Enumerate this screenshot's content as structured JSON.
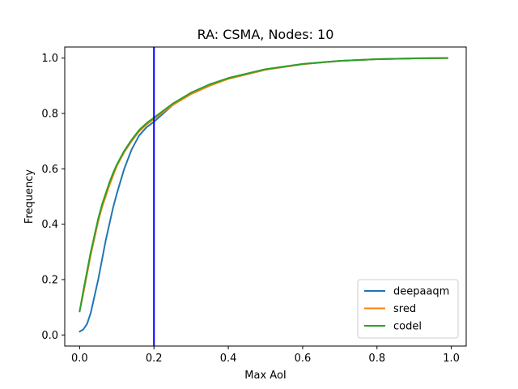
{
  "chart_data": {
    "type": "line",
    "title": "RA: CSMA, Nodes: 10",
    "xlabel": "Max AoI",
    "ylabel": "Frequency",
    "xlim": [
      -0.04,
      1.04
    ],
    "ylim": [
      -0.04,
      1.04
    ],
    "xticks": [
      {
        "value": 0.0,
        "label": "0.0"
      },
      {
        "value": 0.2,
        "label": "0.2"
      },
      {
        "value": 0.4,
        "label": "0.4"
      },
      {
        "value": 0.6,
        "label": "0.6"
      },
      {
        "value": 0.8,
        "label": "0.8"
      },
      {
        "value": 1.0,
        "label": "1.0"
      }
    ],
    "yticks": [
      {
        "value": 0.0,
        "label": "0.0"
      },
      {
        "value": 0.2,
        "label": "0.2"
      },
      {
        "value": 0.4,
        "label": "0.4"
      },
      {
        "value": 0.6,
        "label": "0.6"
      },
      {
        "value": 0.8,
        "label": "0.8"
      },
      {
        "value": 1.0,
        "label": "1.0"
      }
    ],
    "grid": false,
    "legend_position": "lower right",
    "vline": {
      "x": 0.2,
      "color": "#0000ff"
    },
    "series": [
      {
        "name": "deepaaqm",
        "color": "#1f77b4",
        "x": [
          0.0,
          0.01,
          0.02,
          0.03,
          0.04,
          0.05,
          0.06,
          0.07,
          0.08,
          0.09,
          0.1,
          0.12,
          0.14,
          0.16,
          0.18,
          0.2,
          0.25,
          0.3,
          0.35,
          0.4,
          0.5,
          0.6,
          0.7,
          0.8,
          0.9,
          0.99
        ],
        "y": [
          0.012,
          0.02,
          0.04,
          0.08,
          0.14,
          0.2,
          0.27,
          0.34,
          0.4,
          0.46,
          0.51,
          0.6,
          0.67,
          0.72,
          0.75,
          0.77,
          0.83,
          0.875,
          0.905,
          0.925,
          0.958,
          0.978,
          0.99,
          0.996,
          0.999,
          1.0
        ]
      },
      {
        "name": "sred",
        "color": "#ff7f0e",
        "x": [
          0.0,
          0.01,
          0.02,
          0.03,
          0.04,
          0.05,
          0.06,
          0.07,
          0.08,
          0.09,
          0.1,
          0.12,
          0.14,
          0.16,
          0.18,
          0.2,
          0.25,
          0.3,
          0.35,
          0.4,
          0.5,
          0.6,
          0.7,
          0.8,
          0.9,
          0.99
        ],
        "y": [
          0.085,
          0.15,
          0.22,
          0.29,
          0.35,
          0.41,
          0.46,
          0.5,
          0.54,
          0.575,
          0.61,
          0.66,
          0.7,
          0.735,
          0.76,
          0.78,
          0.83,
          0.87,
          0.9,
          0.925,
          0.958,
          0.978,
          0.99,
          0.996,
          0.999,
          1.0
        ]
      },
      {
        "name": "codel",
        "color": "#2ca02c",
        "x": [
          0.0,
          0.01,
          0.02,
          0.03,
          0.04,
          0.05,
          0.06,
          0.07,
          0.08,
          0.09,
          0.1,
          0.12,
          0.14,
          0.16,
          0.18,
          0.2,
          0.25,
          0.3,
          0.35,
          0.4,
          0.5,
          0.6,
          0.7,
          0.8,
          0.9,
          0.99
        ],
        "y": [
          0.085,
          0.16,
          0.23,
          0.3,
          0.36,
          0.42,
          0.47,
          0.51,
          0.55,
          0.585,
          0.615,
          0.665,
          0.705,
          0.74,
          0.765,
          0.785,
          0.835,
          0.875,
          0.905,
          0.928,
          0.96,
          0.979,
          0.99,
          0.996,
          0.999,
          1.0
        ]
      }
    ]
  }
}
